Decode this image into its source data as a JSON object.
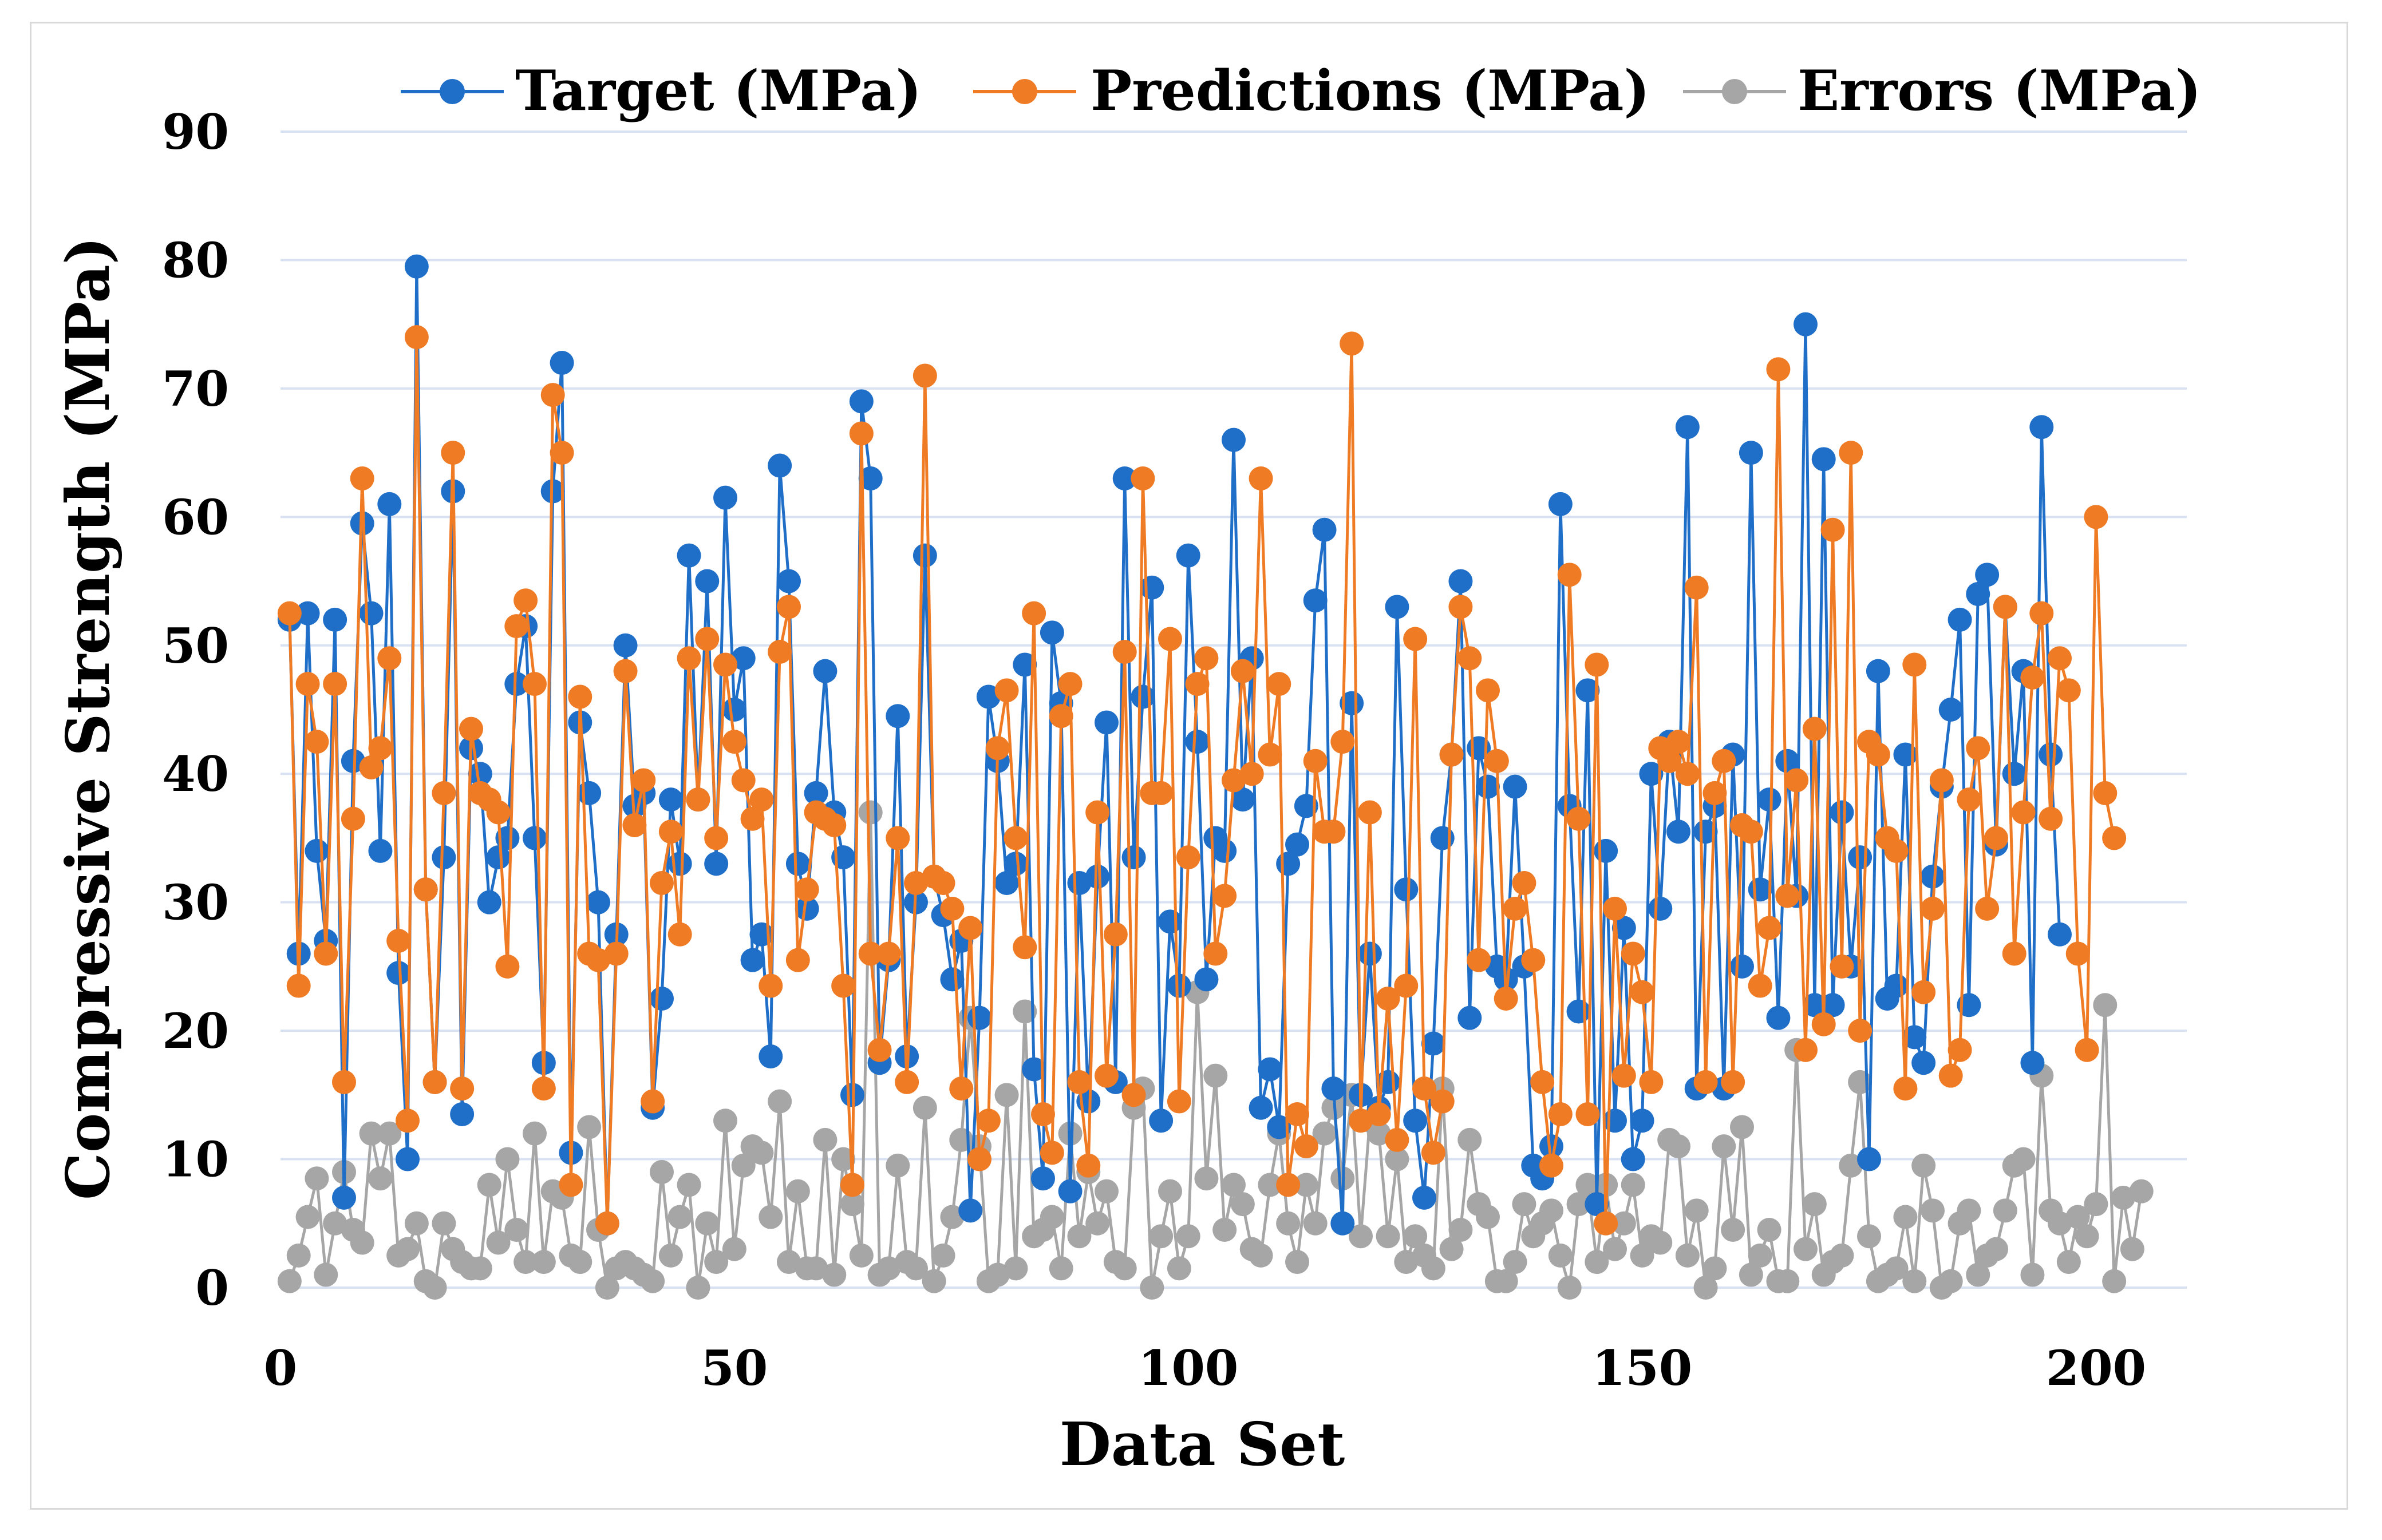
{
  "chart_data": {
    "type": "line",
    "title": "",
    "xlabel": "Data Set",
    "ylabel": "Compressive Strength (MPa)",
    "xlim": [
      0,
      210
    ],
    "ylim": [
      0,
      90
    ],
    "x_ticks": [
      "0",
      "50",
      "100",
      "150",
      "200"
    ],
    "y_ticks": [
      "0",
      "10",
      "20",
      "30",
      "40",
      "50",
      "60",
      "70",
      "80",
      "90"
    ],
    "grid": "horizontal",
    "legend_position": "top",
    "colors": {
      "target": "#1f6fc9",
      "predictions": "#f07b25",
      "errors": "#a6a6a6",
      "grid": "#d9e2f3",
      "frame": "#d9d9d9"
    },
    "series": [
      {
        "name": "Target (MPa)",
        "values": [
          52,
          26,
          52.5,
          34,
          27,
          52,
          7,
          41,
          59.5,
          52.5,
          34,
          61,
          24.5,
          10,
          79.5,
          31,
          16,
          33.5,
          62,
          13.5,
          42,
          40,
          30,
          33.5,
          35,
          47,
          51.5,
          35,
          17.5,
          62,
          72,
          10.5,
          44,
          38.5,
          30,
          5,
          27.5,
          50,
          37.5,
          38.5,
          14,
          22.5,
          38,
          33,
          57,
          38,
          55,
          33,
          61.5,
          45,
          49,
          25.5,
          27.5,
          18,
          64,
          55,
          33,
          29.5,
          38.5,
          48,
          37,
          33.5,
          15,
          69,
          63,
          17.5,
          25.5,
          44.5,
          18,
          30,
          57,
          32,
          29,
          24,
          27,
          6,
          21,
          46,
          41,
          31.5,
          33,
          48.5,
          17,
          8.5,
          51,
          45.5,
          7.5,
          31.5,
          14.5,
          32,
          44,
          16,
          63,
          33.5,
          46,
          54.5,
          13,
          28.5,
          23.5,
          57,
          42.5,
          24,
          35,
          34,
          66,
          38,
          49,
          14,
          17,
          12.5,
          33,
          34.5,
          37.5,
          53.5,
          59,
          15.5,
          5,
          45.5,
          15,
          26,
          14,
          16,
          53,
          31,
          13,
          7,
          19,
          35,
          41.5,
          55,
          21,
          42,
          39,
          25,
          24,
          39,
          25,
          9.5,
          8.5,
          11,
          61,
          37.5,
          21.5,
          46.5,
          6.5,
          34,
          13,
          28,
          10,
          13,
          40,
          29.5,
          42.5,
          35.5,
          67,
          15.5,
          35.5,
          37.5,
          15.5,
          41.5,
          25,
          65,
          31,
          38,
          21,
          41,
          30.5,
          75,
          22,
          64.5,
          22,
          37,
          25,
          33.5,
          10,
          48,
          22.5,
          23.5,
          41.5,
          19.5,
          17.5,
          32,
          39,
          45,
          52,
          22,
          54,
          55.5,
          34.5,
          53,
          40,
          48,
          17.5,
          67,
          41.5,
          27.5
        ]
      },
      {
        "name": "Predictions (MPa)",
        "values": [
          52.5,
          23.5,
          47,
          42.5,
          26,
          47,
          16,
          36.5,
          63,
          40.5,
          42,
          49,
          27,
          13,
          74,
          31,
          16,
          38.5,
          65,
          15.5,
          43.5,
          38.5,
          38,
          37,
          25,
          51.5,
          53.5,
          47,
          15.5,
          69.5,
          65,
          8,
          46,
          26,
          25.5,
          5,
          26,
          48,
          36,
          39.5,
          14.5,
          31.5,
          35.5,
          27.5,
          49,
          38,
          50.5,
          35,
          48.5,
          42.5,
          39.5,
          36.5,
          38,
          23.5,
          49.5,
          53,
          25.5,
          31,
          37,
          36.5,
          36,
          23.5,
          8,
          66.5,
          26,
          18.5,
          26,
          35,
          16,
          31.5,
          71,
          32,
          31.5,
          29.5,
          15.5,
          28,
          10,
          13,
          42,
          46.5,
          35,
          26.5,
          52.5,
          13.5,
          10.5,
          44.5,
          47,
          16,
          9.5,
          37,
          16.5,
          27.5,
          49.5,
          15,
          63,
          38.5,
          38.5,
          50.5,
          14.5,
          33.5,
          47,
          49,
          26,
          30.5,
          39.5,
          48,
          40,
          63,
          41.5,
          47,
          8,
          13.5,
          11,
          41,
          35.5,
          35.5,
          42.5,
          73.5,
          13,
          37,
          13.5,
          22.5,
          11.5,
          23.5,
          50.5,
          15.5,
          10.5,
          14.5,
          41.5,
          53,
          49,
          25.5,
          46.5,
          41,
          22.5,
          29.5,
          31.5,
          25.5,
          16,
          9.5,
          13.5,
          55.5,
          36.5,
          13.5,
          48.5,
          5,
          29.5,
          16.5,
          26,
          23,
          16,
          42,
          41,
          42.5,
          40,
          54.5,
          16,
          38.5,
          41,
          16,
          36,
          35.5,
          23.5,
          28,
          71.5,
          30.5,
          39.5,
          18.5,
          43.5,
          20.5,
          59,
          25,
          65,
          20,
          42.5,
          41.5,
          35,
          34,
          15.5,
          48.5,
          23,
          29.5,
          39.5,
          16.5,
          18.5,
          38,
          42,
          29.5,
          35,
          53,
          26,
          37,
          47.5,
          52.5,
          36.5,
          49,
          46.5,
          26,
          18.5,
          60,
          38.5,
          35
        ]
      },
      {
        "name": "Errors (MPa)",
        "values": [
          0.5,
          2.5,
          5.5,
          8.5,
          1,
          5,
          9,
          4.5,
          3.5,
          12,
          8.5,
          12,
          2.5,
          3,
          5,
          0.5,
          0,
          5,
          3,
          2,
          1.5,
          1.5,
          8,
          3.5,
          10,
          4.5,
          2,
          12,
          2,
          7.5,
          7,
          2.5,
          2,
          12.5,
          4.5,
          0,
          1.5,
          2,
          1.5,
          1,
          0.5,
          9,
          2.5,
          5.5,
          8,
          0,
          5,
          2,
          13,
          3,
          9.5,
          11,
          10.5,
          5.5,
          14.5,
          2,
          7.5,
          1.5,
          1.5,
          11.5,
          1,
          10,
          6.5,
          2.5,
          37,
          1,
          1.5,
          9.5,
          2,
          1.5,
          14,
          0.5,
          2.5,
          5.5,
          11.5,
          21,
          11,
          0.5,
          1,
          15,
          1.5,
          21.5,
          4,
          4.5,
          5.5,
          1.5,
          12,
          4,
          9,
          5,
          7.5,
          2,
          1.5,
          14,
          15.5,
          0,
          4,
          7.5,
          1.5,
          4,
          23,
          8.5,
          16.5,
          4.5,
          8,
          6.5,
          3,
          2.5,
          8,
          12,
          5,
          2,
          8,
          5,
          12,
          14,
          8.5,
          15,
          4,
          13,
          12,
          4,
          10,
          2,
          4,
          2.5,
          1.5,
          15.5,
          3,
          4.5,
          11.5,
          6.5,
          5.5,
          0.5,
          0.5,
          2,
          6.5,
          4,
          5,
          6,
          2.5,
          0,
          6.5,
          8,
          2,
          8,
          3,
          5,
          8,
          2.5,
          4,
          3.5,
          11.5,
          11,
          2.5,
          6,
          0,
          1.5,
          11,
          4.5,
          12.5,
          1,
          2.5,
          4.5,
          0.5,
          0.5,
          18.5,
          3,
          6.5,
          1,
          2,
          2.5,
          9.5,
          16,
          4,
          0.5,
          1,
          1.5,
          5.5,
          0.5,
          9.5,
          6,
          0,
          0.5,
          5,
          6,
          1,
          2.5,
          3,
          6,
          9.5,
          10,
          1,
          16.5,
          6,
          5,
          2,
          5.5,
          4,
          6.5,
          22,
          0.5,
          7,
          3,
          7.5
        ]
      }
    ]
  }
}
